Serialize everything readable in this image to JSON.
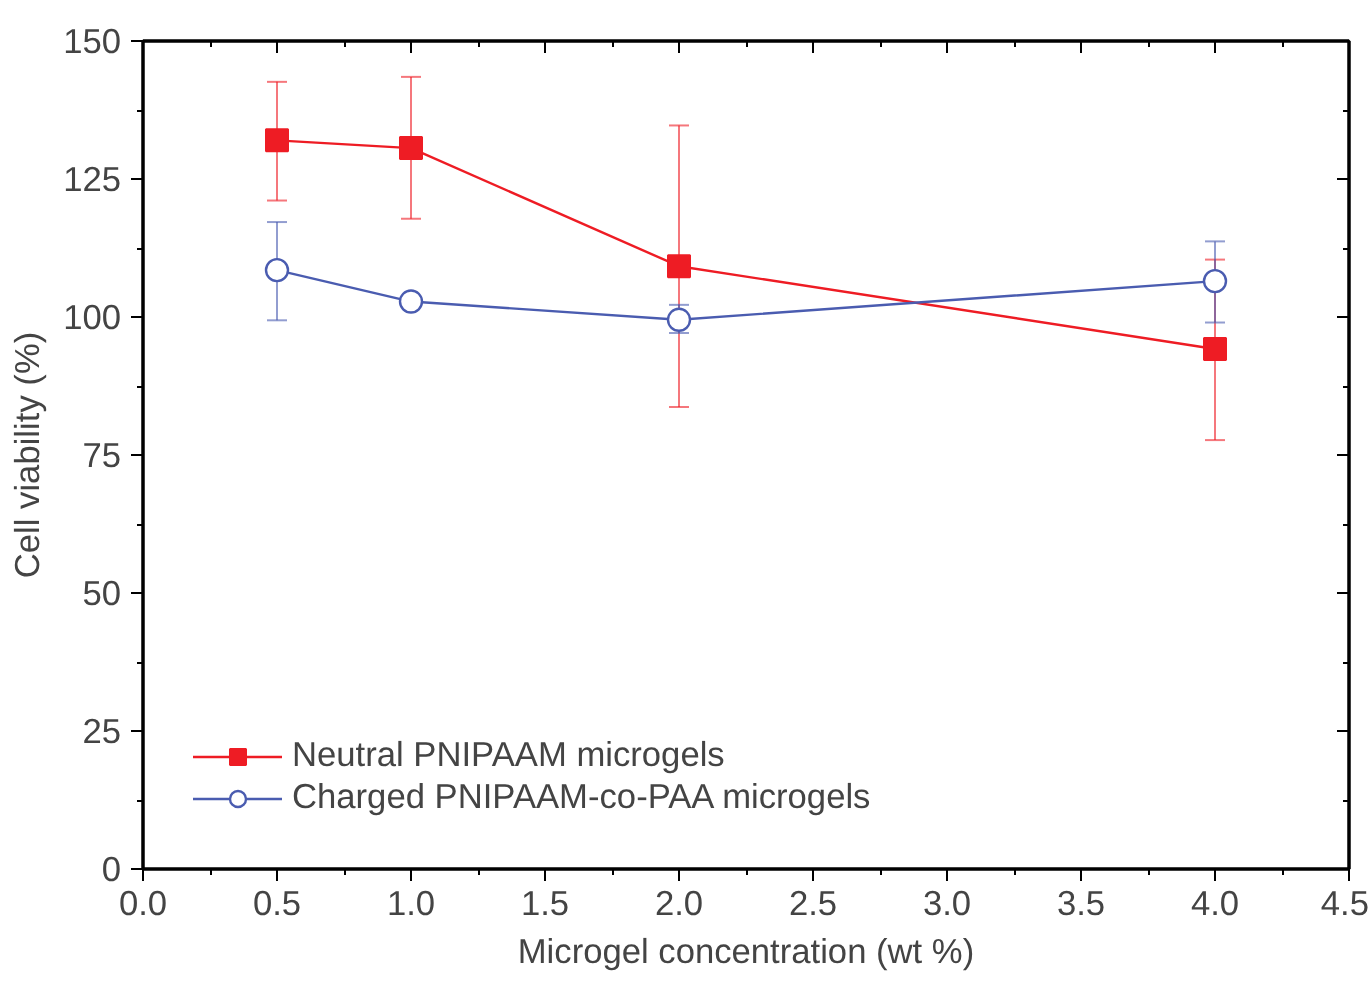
{
  "chart_data": {
    "type": "line",
    "xlabel": "Microgel concentration (wt %)",
    "ylabel": "Cell viability (%)",
    "x": [
      0.5,
      1.0,
      2.0,
      4.0
    ],
    "series": [
      {
        "name": "Neutral PNIPAAM microgels",
        "color": "#ee1c24",
        "marker": "square",
        "values": [
          132,
          130.6,
          109.2,
          94.2
        ],
        "errors": [
          [
            121.1,
            142.6
          ],
          [
            117.8,
            143.5
          ],
          [
            83.7,
            134.7
          ],
          [
            77.7,
            110.4
          ]
        ]
      },
      {
        "name": "Charged PNIPAAM-co-PAA microgels",
        "color": "#4a5cb0",
        "marker": "circle",
        "values": [
          108.5,
          102.8,
          99.5,
          106.5
        ],
        "errors": [
          [
            99.4,
            117.2
          ],
          null,
          [
            97.1,
            102.2
          ],
          [
            99.0,
            113.7
          ]
        ]
      }
    ],
    "xlim": [
      0,
      4.5
    ],
    "ylim": [
      0,
      150
    ],
    "xticks": [
      {
        "value": 0,
        "label": "0.0"
      },
      0.5,
      {
        "value": 1,
        "label": "1.0"
      },
      1.5,
      {
        "value": 2,
        "label": "2.0"
      },
      2.5,
      {
        "value": 3,
        "label": "3.0"
      },
      3.5,
      {
        "value": 4,
        "label": "4.0"
      },
      4.5
    ],
    "yticks": [
      0,
      25,
      50,
      75,
      100,
      125,
      150
    ],
    "grid": false,
    "legend": "bottom left",
    "line_style": "solid"
  }
}
